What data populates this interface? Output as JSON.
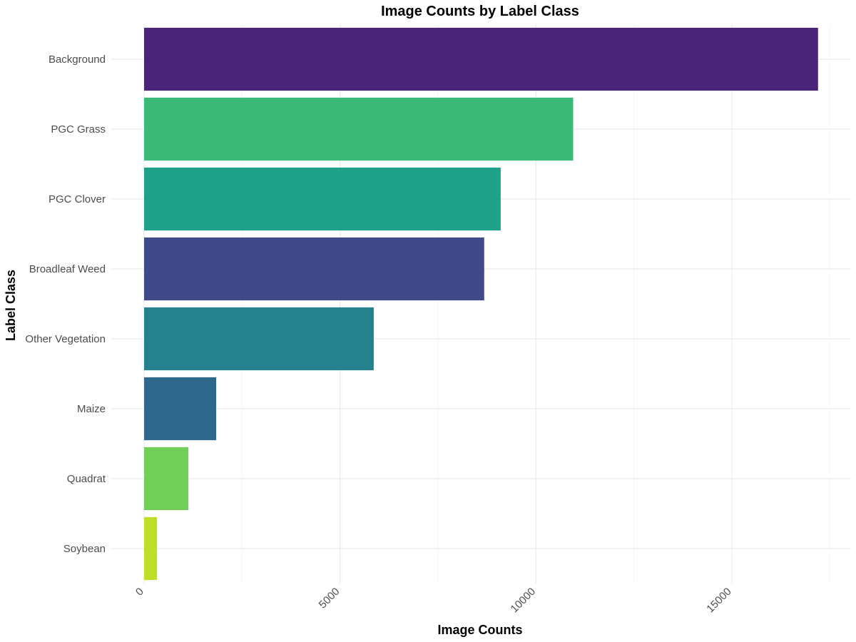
{
  "chart_data": {
    "type": "bar",
    "orientation": "horizontal",
    "title": "Image Counts by Label Class",
    "xlabel": "Image Counts",
    "ylabel": "Label Class",
    "categories": [
      "Background",
      "PGC Grass",
      "PGC Clover",
      "Broadleaf Weed",
      "Other Vegetation",
      "Maize",
      "Quadrat",
      "Soybean"
    ],
    "values": [
      17200,
      10950,
      9100,
      8680,
      5860,
      1840,
      1130,
      330
    ],
    "colors": [
      "#482576",
      "#3BB979",
      "#1FA088",
      "#404A88",
      "#26818E",
      "#30678D",
      "#71CF57",
      "#BDDF26"
    ],
    "xlim": [
      0,
      18000
    ],
    "xticks": [
      0,
      5000,
      10000,
      15000
    ],
    "grid": true,
    "legend": "none"
  }
}
